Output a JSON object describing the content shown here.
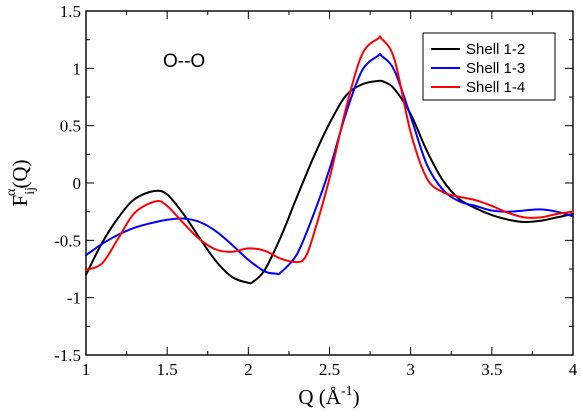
{
  "chart_data": {
    "type": "line",
    "annotation": "O--O",
    "xlabel": {
      "main": "Q (Å",
      "sup": "-1",
      "tail": ")"
    },
    "ylabel": {
      "main": "F",
      "sub": "ij",
      "sup": "α",
      "tail": "(Q)"
    },
    "xlim": [
      1,
      4
    ],
    "ylim": [
      -1.5,
      1.5
    ],
    "xticks": [
      1,
      1.5,
      2,
      2.5,
      3,
      3.5,
      4
    ],
    "xtick_labels": [
      "1",
      "1.5",
      "2",
      "2.5",
      "3",
      "3.5",
      "4"
    ],
    "yticks": [
      -1.5,
      -1,
      -0.5,
      0,
      0.5,
      1,
      1.5
    ],
    "ytick_labels": [
      "-1.5",
      "-1",
      "-0.5",
      "0",
      "0.5",
      "1",
      "1.5"
    ],
    "legend_position": "top-right",
    "grid": false,
    "series": [
      {
        "name": "Shell 1-2",
        "color": "#000000",
        "x": [
          1.0,
          1.1,
          1.2,
          1.3,
          1.42,
          1.5,
          1.6,
          1.7,
          1.8,
          1.9,
          2.0,
          2.03,
          2.1,
          2.2,
          2.3,
          2.4,
          2.5,
          2.6,
          2.7,
          2.8,
          2.84,
          2.9,
          3.0,
          3.1,
          3.2,
          3.3,
          3.4,
          3.5,
          3.6,
          3.7,
          3.8,
          3.9,
          4.0
        ],
        "y": [
          -0.8,
          -0.52,
          -0.3,
          -0.14,
          -0.07,
          -0.1,
          -0.27,
          -0.48,
          -0.68,
          -0.82,
          -0.87,
          -0.86,
          -0.76,
          -0.47,
          -0.12,
          0.22,
          0.52,
          0.76,
          0.86,
          0.89,
          0.88,
          0.82,
          0.6,
          0.28,
          0.02,
          -0.14,
          -0.22,
          -0.28,
          -0.32,
          -0.34,
          -0.33,
          -0.3,
          -0.27
        ]
      },
      {
        "name": "Shell 1-3",
        "color": "#0000ff",
        "x": [
          1.0,
          1.1,
          1.2,
          1.3,
          1.4,
          1.5,
          1.6,
          1.7,
          1.8,
          1.9,
          2.0,
          2.1,
          2.17,
          2.2,
          2.3,
          2.4,
          2.5,
          2.6,
          2.7,
          2.8,
          2.82,
          2.9,
          3.0,
          3.1,
          3.2,
          3.3,
          3.4,
          3.5,
          3.6,
          3.7,
          3.8,
          3.9,
          4.0
        ],
        "y": [
          -0.63,
          -0.53,
          -0.45,
          -0.39,
          -0.35,
          -0.32,
          -0.31,
          -0.34,
          -0.42,
          -0.54,
          -0.67,
          -0.77,
          -0.79,
          -0.78,
          -0.62,
          -0.28,
          0.12,
          0.6,
          0.98,
          1.11,
          1.11,
          0.98,
          0.58,
          0.16,
          -0.06,
          -0.16,
          -0.2,
          -0.24,
          -0.25,
          -0.24,
          -0.23,
          -0.25,
          -0.29
        ]
      },
      {
        "name": "Shell 1-4",
        "color": "#ff0000",
        "x": [
          1.0,
          1.1,
          1.2,
          1.3,
          1.43,
          1.5,
          1.6,
          1.7,
          1.8,
          1.9,
          2.0,
          2.1,
          2.2,
          2.3,
          2.35,
          2.4,
          2.5,
          2.6,
          2.7,
          2.8,
          2.82,
          2.9,
          3.0,
          3.1,
          3.2,
          3.3,
          3.4,
          3.5,
          3.6,
          3.7,
          3.8,
          3.9,
          4.0
        ],
        "y": [
          -0.76,
          -0.7,
          -0.48,
          -0.26,
          -0.16,
          -0.2,
          -0.35,
          -0.49,
          -0.58,
          -0.6,
          -0.57,
          -0.59,
          -0.66,
          -0.69,
          -0.65,
          -0.46,
          0.04,
          0.64,
          1.12,
          1.26,
          1.26,
          1.08,
          0.44,
          0.04,
          -0.08,
          -0.12,
          -0.15,
          -0.2,
          -0.26,
          -0.3,
          -0.3,
          -0.27,
          -0.25
        ]
      }
    ]
  }
}
